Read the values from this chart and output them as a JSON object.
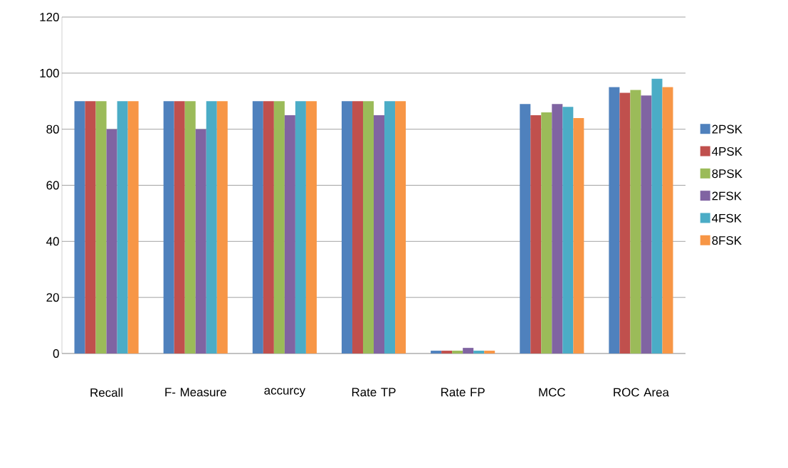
{
  "chart_data": {
    "type": "bar",
    "categories": [
      "Recall",
      "F- Measure",
      "accurcy",
      "Rate TP",
      "Rate FP",
      "MCC",
      "ROC Area"
    ],
    "series": [
      {
        "name": "2PSK",
        "color": "#4f81bd",
        "values": [
          90,
          90,
          90,
          90,
          1,
          89,
          95
        ]
      },
      {
        "name": "4PSK",
        "color": "#c0504d",
        "values": [
          90,
          90,
          90,
          90,
          1,
          85,
          93
        ]
      },
      {
        "name": "8PSK",
        "color": "#9bbb59",
        "values": [
          90,
          90,
          90,
          90,
          1,
          86,
          94
        ]
      },
      {
        "name": "2FSK",
        "color": "#8064a2",
        "values": [
          80,
          80,
          85,
          85,
          2,
          89,
          92
        ]
      },
      {
        "name": "4FSK",
        "color": "#4bacc6",
        "values": [
          90,
          90,
          90,
          90,
          1,
          88,
          98
        ]
      },
      {
        "name": "8FSK",
        "color": "#f79646",
        "values": [
          90,
          90,
          90,
          90,
          1,
          84,
          95
        ]
      }
    ],
    "ylim": [
      0,
      120
    ],
    "yticks": [
      0,
      20,
      40,
      60,
      80,
      100,
      120
    ],
    "grid": "y",
    "legend": "right"
  }
}
